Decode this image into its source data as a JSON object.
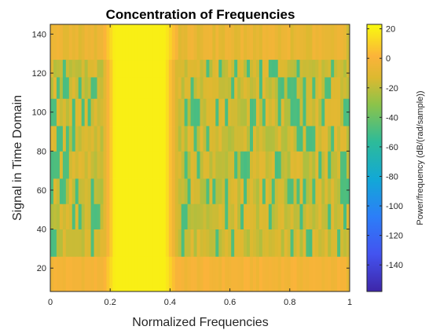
{
  "chart_data": {
    "type": "heatmap",
    "title": "Concentration of Frequencies",
    "xlabel": "Normalized Frequencies",
    "ylabel": "Signal in Time Domain",
    "xlim": [
      0,
      1
    ],
    "ylim": [
      8,
      145
    ],
    "xticks": [
      "0",
      "0.2",
      "0.4",
      "0.6",
      "0.8",
      "1"
    ],
    "yticks": [
      "20",
      "40",
      "60",
      "80",
      "100",
      "120",
      "140"
    ],
    "colorbar": {
      "label": "Power/frequency (dB/(rad/sample))",
      "range": [
        -158,
        23
      ],
      "ticks": [
        "20",
        "0",
        "-20",
        "-40",
        "-60",
        "-80",
        "-100",
        "-120",
        "-140"
      ],
      "colormap": "parula"
    },
    "bands": [
      {
        "y_from": 8,
        "y_to": 26,
        "description": "low rows, strong power"
      },
      {
        "y_from": 26,
        "y_to": 127,
        "description": "middle rows, weaker power with stripes"
      },
      {
        "y_from": 127,
        "y_to": 145,
        "description": "top rows, moderate power"
      }
    ],
    "peak_frequency_range": [
      0.2,
      0.4
    ],
    "grid": false,
    "legend": "none"
  }
}
